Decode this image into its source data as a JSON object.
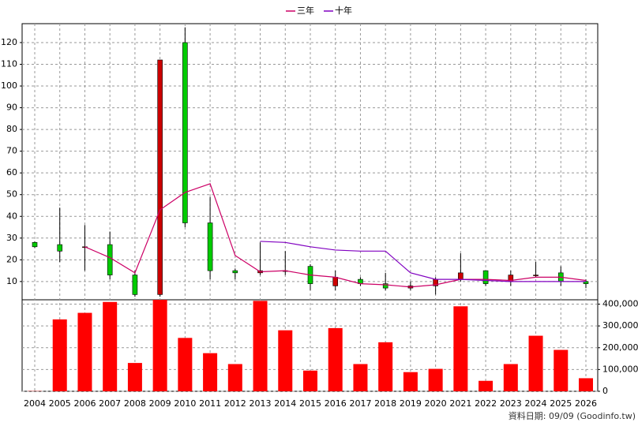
{
  "chart_data": {
    "type": "candlestick",
    "categories": [
      "2004",
      "2005",
      "2006",
      "2007",
      "2008",
      "2009",
      "2010",
      "2011",
      "2012",
      "2013",
      "2014",
      "2015",
      "2016",
      "2017",
      "2018",
      "2019",
      "2020",
      "2021",
      "2022",
      "2023",
      "2024",
      "2025",
      "2026"
    ],
    "open": [
      28,
      27,
      26,
      27,
      13,
      4,
      120,
      37,
      15,
      14,
      15,
      17,
      8,
      11,
      9,
      7,
      8,
      11,
      15,
      10,
      13,
      14,
      10
    ],
    "high": [
      28.5,
      44,
      36,
      33,
      15,
      112,
      127,
      49,
      16,
      28,
      24,
      18,
      15,
      12,
      14,
      10,
      12,
      23,
      15,
      15,
      19,
      17,
      11
    ],
    "low": [
      25.5,
      19,
      15,
      11,
      3,
      3,
      35,
      11,
      11,
      13,
      13,
      6,
      6,
      8,
      6,
      6,
      4,
      10,
      8,
      8,
      12,
      8,
      7
    ],
    "close": [
      26,
      24,
      26,
      13,
      4,
      112,
      37,
      15,
      14,
      15,
      15,
      9,
      12,
      9,
      7,
      8,
      11,
      14,
      9,
      13,
      13,
      10,
      9
    ],
    "up_color": "#cc0000",
    "down_color": "#00cc00",
    "ylim": [
      1.6,
      128.7
    ],
    "yticks": [
      10,
      20,
      30,
      40,
      50,
      60,
      70,
      80,
      90,
      100,
      110,
      120
    ],
    "grid": true,
    "legend": "top",
    "series": [
      {
        "name": "三年",
        "color": "#cc0066",
        "values": [
          null,
          null,
          26,
          21,
          14,
          43,
          51,
          55,
          22,
          14.5,
          15,
          13,
          12,
          9,
          8.5,
          7.5,
          8.5,
          11,
          11,
          10.5,
          12,
          12,
          10.5
        ]
      },
      {
        "name": "十年",
        "color": "#8000c0",
        "values": [
          null,
          null,
          null,
          null,
          null,
          null,
          null,
          null,
          null,
          28.5,
          28,
          26,
          24.5,
          24,
          24,
          14,
          11,
          11,
          10.5,
          10,
          10,
          10,
          10
        ]
      }
    ],
    "volume": {
      "type": "bar",
      "color": "#ff0000",
      "values": [
        1000,
        330000,
        360000,
        410000,
        130000,
        420000,
        245000,
        175000,
        125000,
        415000,
        280000,
        95000,
        290000,
        125000,
        225000,
        88000,
        103000,
        390000,
        48000,
        125000,
        255000,
        190000,
        60000
      ],
      "ylim": [
        0,
        420000
      ],
      "yticks": [
        0,
        {
          "value": 100000,
          "label": "100,000"
        },
        {
          "value": 200000,
          "label": "200,000"
        },
        {
          "value": 300000,
          "label": "300,000"
        },
        {
          "value": 400000,
          "label": "400,000"
        }
      ]
    },
    "source": "資料日期: 09/09 (Goodinfo.tw)"
  }
}
